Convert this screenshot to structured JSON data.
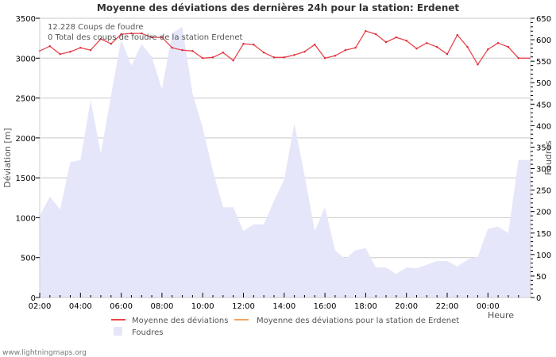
{
  "chart_data": {
    "type": "line",
    "title": "Moyenne des déviations des dernières 24h pour la station: Erdenet",
    "xlabel": "Heure",
    "ylabel": "Déviation  [m]",
    "y2label": "Foudres",
    "ylim": [
      0,
      3500
    ],
    "y2lim": [
      0,
      650
    ],
    "grid": true,
    "x_ticks": [
      "02:00",
      "04:00",
      "06:00",
      "08:00",
      "10:00",
      "12:00",
      "14:00",
      "16:00",
      "18:00",
      "20:00",
      "22:00",
      "00:00"
    ],
    "y_ticks": [
      0,
      500,
      1000,
      1500,
      2000,
      2500,
      3000,
      3500
    ],
    "y2_ticks": [
      0,
      50,
      100,
      150,
      200,
      250,
      300,
      350,
      400,
      450,
      500,
      550,
      600,
      650
    ],
    "x_hours": [
      0,
      0.5,
      1,
      1.5,
      2,
      2.5,
      3,
      3.5,
      4,
      4.5,
      5,
      5.5,
      6,
      6.5,
      7,
      7.5,
      8,
      8.5,
      9,
      9.5,
      10,
      10.5,
      11,
      11.5,
      12,
      12.5,
      13,
      13.5,
      14,
      14.5,
      15,
      15.5,
      16,
      16.5,
      17,
      17.5,
      18,
      18.5,
      19,
      19.5,
      20,
      20.5,
      21,
      21.5,
      22,
      22.5,
      23,
      23.5
    ],
    "series": [
      {
        "name": "Moyenne des déviations",
        "axis": "left",
        "color": "#e8434b",
        "type": "line",
        "values": [
          3090,
          3150,
          3050,
          3080,
          3130,
          3100,
          3240,
          3180,
          3300,
          3310,
          3310,
          3260,
          3260,
          3130,
          3100,
          3090,
          3000,
          3010,
          3070,
          2970,
          3180,
          3170,
          3070,
          3010,
          3010,
          3040,
          3080,
          3170,
          3000,
          3030,
          3100,
          3130,
          3340,
          3300,
          3200,
          3260,
          3220,
          3120,
          3190,
          3140,
          3050,
          3290,
          3140,
          2920,
          3110,
          3190,
          3140,
          3000
        ]
      },
      {
        "name": "Moyenne des déviations pour la station de Erdenet",
        "axis": "left",
        "color": "#f4a460",
        "type": "line",
        "values": []
      },
      {
        "name": "Foudres",
        "axis": "right",
        "color": "#e6e6fa",
        "type": "area",
        "values": [
          190,
          235,
          205,
          315,
          320,
          460,
          335,
          470,
          600,
          540,
          590,
          560,
          485,
          615,
          630,
          475,
          395,
          295,
          210,
          210,
          155,
          170,
          170,
          225,
          275,
          405,
          285,
          155,
          210,
          110,
          90,
          110,
          115,
          70,
          70,
          55,
          70,
          68,
          76,
          85,
          85,
          72,
          88,
          95,
          160,
          165,
          150,
          320
        ]
      }
    ],
    "annotations": [
      "12.228  Coups de foudre",
      "0 Total des coups de foudre de la station Erdenet"
    ],
    "legend_position": "bottom"
  },
  "header": {
    "title": "Moyenne des déviations des dernières 24h pour la station: Erdenet"
  },
  "info": {
    "line1": "12.228  Coups de foudre",
    "line2": "0 Total des coups de foudre de la station Erdenet"
  },
  "axes": {
    "left_title": "Déviation  [m]",
    "right_title": "Foudres",
    "x_title": "Heure"
  },
  "legend": {
    "items": [
      {
        "label": "Moyenne des déviations",
        "color": "#e8434b"
      },
      {
        "label": "Moyenne des déviations pour la station de Erdenet",
        "color": "#f4a460"
      },
      {
        "label": "Foudres",
        "color": "#e6e6fa"
      }
    ]
  },
  "footer": {
    "credit": "www.lightningmaps.org"
  }
}
